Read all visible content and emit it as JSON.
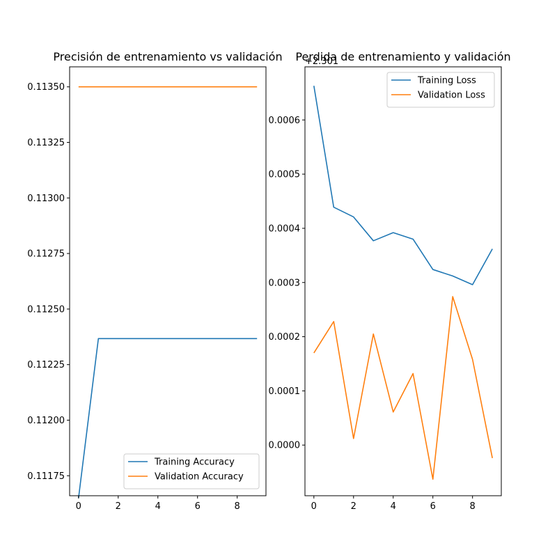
{
  "chart_data": [
    {
      "type": "line",
      "title": "Precisión de entrenamiento vs validación",
      "xlabel": "",
      "ylabel": "",
      "xlim": [
        -0.45,
        9.45
      ],
      "ylim": [
        0.11166,
        0.11359
      ],
      "xticks": [
        0,
        2,
        4,
        6,
        8
      ],
      "xtick_labels": [
        "0",
        "2",
        "4",
        "6",
        "8"
      ],
      "yticks": [
        0.11175,
        0.112,
        0.11225,
        0.1125,
        0.11275,
        0.113,
        0.11325,
        0.1135
      ],
      "ytick_labels": [
        "0.11175",
        "0.11200",
        "0.11225",
        "0.11250",
        "0.11275",
        "0.11300",
        "0.11325",
        "0.11350"
      ],
      "grid": false,
      "legend_position": "lower-right",
      "x": [
        0,
        1,
        2,
        3,
        4,
        5,
        6,
        7,
        8,
        9
      ],
      "series": [
        {
          "name": "Training Accuracy",
          "color": "#1f77b4",
          "values": [
            0.11165,
            0.112367,
            0.112367,
            0.112367,
            0.112367,
            0.112367,
            0.112367,
            0.112367,
            0.112367,
            0.112367
          ]
        },
        {
          "name": "Validation Accuracy",
          "color": "#ff7f0e",
          "values": [
            0.1135,
            0.1135,
            0.1135,
            0.1135,
            0.1135,
            0.1135,
            0.1135,
            0.1135,
            0.1135,
            0.1135
          ]
        }
      ]
    },
    {
      "type": "line",
      "title": "Perdida de entrenamiento y validación",
      "xlabel": "",
      "ylabel": "",
      "offset_label": "+2.301",
      "xlim": [
        -0.45,
        9.45
      ],
      "ylim": [
        -9.35e-05,
        0.000698
      ],
      "xticks": [
        0,
        2,
        4,
        6,
        8
      ],
      "xtick_labels": [
        "0",
        "2",
        "4",
        "6",
        "8"
      ],
      "yticks": [
        0.0,
        0.0001,
        0.0002,
        0.0003,
        0.0004,
        0.0005,
        0.0006
      ],
      "ytick_labels": [
        "0.0000",
        "0.0001",
        "0.0002",
        "0.0003",
        "0.0004",
        "0.0005",
        "0.0006"
      ],
      "grid": false,
      "legend_position": "upper-right",
      "x": [
        0,
        1,
        2,
        3,
        4,
        5,
        6,
        7,
        8,
        9
      ],
      "series": [
        {
          "name": "Training Loss",
          "color": "#1f77b4",
          "values": [
            0.000663,
            0.000439,
            0.000421,
            0.000377,
            0.000392,
            0.00038,
            0.000324,
            0.000312,
            0.000296,
            0.000362
          ]
        },
        {
          "name": "Validation Loss",
          "color": "#ff7f0e",
          "values": [
            0.00017,
            0.000228,
            1.2e-05,
            0.000205,
            6.1e-05,
            0.000132,
            -6.3e-05,
            0.000274,
            0.000158,
            -2.4e-05
          ]
        }
      ]
    }
  ]
}
